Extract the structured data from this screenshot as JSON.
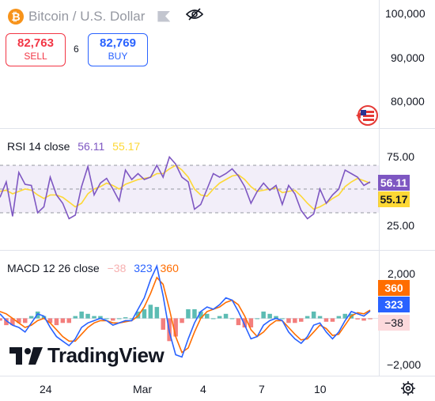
{
  "symbol": {
    "title": "Bitcoin / U.S. Dollar",
    "coin_icon": "bitcoin-icon",
    "coin_glyph": "₿"
  },
  "trade": {
    "sell_price": "82,763",
    "sell_label": "SELL",
    "spread": "6",
    "buy_price": "82,769",
    "buy_label": "BUY"
  },
  "price_axis": [
    "100,000",
    "90,000",
    "80,000"
  ],
  "rsi": {
    "label": "RSI 14 close",
    "value": "56.11",
    "ma_value": "55.17",
    "axis": [
      "75.00",
      "25.00"
    ]
  },
  "macd": {
    "label": "MACD 12 26 close",
    "hist_value": "−38",
    "macd_value": "323",
    "signal_value": "360",
    "axis": [
      "2,000",
      "−2,000"
    ]
  },
  "x_axis": [
    "24",
    "Mar",
    "4",
    "7",
    "10"
  ],
  "brand": "TradingView",
  "colors": {
    "rsi": "#7e57c2",
    "rsi_ma": "#fdd835",
    "macd": "#2962ff",
    "signal": "#ff6d00",
    "hist_up": "#26a69a",
    "hist_down": "#ef5350"
  },
  "chart_data": [
    {
      "type": "line",
      "title": "RSI 14 close",
      "ylim": [
        0,
        100
      ],
      "bands": [
        70,
        50,
        30
      ],
      "series": [
        {
          "name": "RSI",
          "values": [
            43,
            56,
            27,
            64,
            54,
            53,
            30,
            35,
            60,
            45,
            38,
            25,
            28,
            52,
            69,
            45,
            55,
            59,
            50,
            40,
            66,
            58,
            63,
            58,
            60,
            70,
            60,
            77,
            71,
            60,
            56,
            33,
            37,
            50,
            63,
            60,
            63,
            67,
            61,
            52,
            38,
            48,
            55,
            49,
            53,
            37,
            53,
            46,
            32,
            25,
            29,
            50,
            38,
            45,
            50,
            66,
            63,
            60,
            53,
            56
          ]
        },
        {
          "name": "MA",
          "values": [
            48,
            49,
            46,
            48,
            50,
            49,
            45,
            42,
            45,
            45,
            43,
            39,
            35,
            38,
            46,
            50,
            52,
            55,
            53,
            50,
            54,
            56,
            58,
            59,
            60,
            63,
            63,
            67,
            70,
            66,
            60,
            50,
            45,
            44,
            50,
            55,
            58,
            61,
            62,
            58,
            52,
            48,
            49,
            50,
            51,
            47,
            48,
            49,
            44,
            38,
            33,
            35,
            38,
            42,
            45,
            52,
            56,
            59,
            57,
            55
          ]
        }
      ]
    },
    {
      "type": "line",
      "title": "MACD 12 26 close",
      "ylim": [
        -2500,
        2800
      ],
      "series": [
        {
          "name": "MACD",
          "values": [
            200,
            -100,
            -300,
            -400,
            -600,
            -200,
            200,
            100,
            -400,
            -800,
            -1000,
            -1200,
            -900,
            -400,
            -200,
            -100,
            0,
            -100,
            -300,
            -200,
            -100,
            -100,
            400,
            900,
            1700,
            2300,
            1000,
            -600,
            -1600,
            -1700,
            -900,
            -200,
            300,
            500,
            400,
            600,
            900,
            800,
            300,
            -300,
            -900,
            -800,
            -300,
            -100,
            0,
            -100,
            -600,
            -900,
            -1100,
            -800,
            -300,
            -200,
            -600,
            -900,
            -600,
            -100,
            300,
            200,
            100,
            323
          ]
        },
        {
          "name": "Signal",
          "values": [
            300,
            200,
            0,
            -200,
            -400,
            -300,
            -100,
            0,
            -200,
            -500,
            -800,
            -1000,
            -1000,
            -700,
            -400,
            -200,
            -100,
            -100,
            -200,
            -200,
            -150,
            -100,
            100,
            500,
            1100,
            1800,
            1500,
            400,
            -800,
            -1500,
            -1300,
            -600,
            0,
            300,
            400,
            500,
            700,
            800,
            600,
            100,
            -500,
            -800,
            -600,
            -300,
            -100,
            -100,
            -400,
            -700,
            -950,
            -900,
            -600,
            -300,
            -450,
            -750,
            -700,
            -300,
            100,
            250,
            200,
            360
          ]
        },
        {
          "name": "Histogram",
          "values": [
            -100,
            -300,
            -300,
            -200,
            -200,
            100,
            300,
            100,
            -200,
            -300,
            -200,
            -200,
            100,
            300,
            200,
            100,
            100,
            0,
            -100,
            0,
            50,
            0,
            300,
            400,
            600,
            500,
            -500,
            -1000,
            -800,
            -200,
            400,
            400,
            300,
            200,
            0,
            100,
            200,
            0,
            -300,
            -400,
            -400,
            0,
            300,
            200,
            100,
            0,
            -200,
            -200,
            -150,
            100,
            300,
            100,
            -150,
            -150,
            100,
            200,
            200,
            -50,
            -100,
            -38
          ]
        }
      ]
    }
  ]
}
